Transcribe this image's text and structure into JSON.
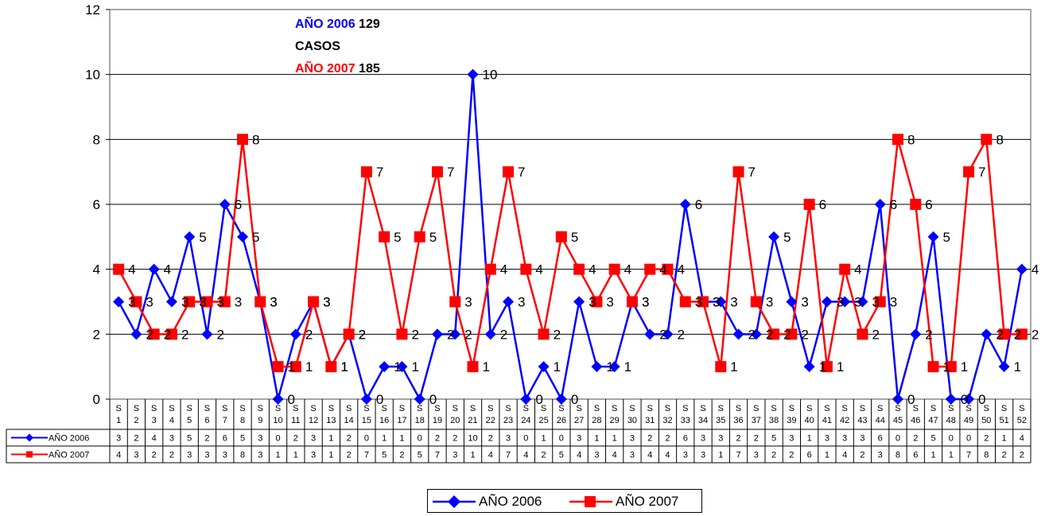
{
  "chart_data": {
    "type": "line",
    "title": "",
    "xlabel": "",
    "ylabel": "",
    "ylim": [
      0,
      12
    ],
    "yticks": [
      0,
      2,
      4,
      6,
      8,
      10,
      12
    ],
    "grid": true,
    "legend_position": "bottom",
    "categories": [
      "S 1",
      "S 2",
      "S 3",
      "S 4",
      "S 5",
      "S 6",
      "S 7",
      "S 8",
      "S 9",
      "S 10",
      "S 11",
      "S 12",
      "S 13",
      "S 14",
      "S 15",
      "S 16",
      "S 17",
      "S 18",
      "S 19",
      "S 20",
      "S 21",
      "S 22",
      "S 23",
      "S 24",
      "S 25",
      "S 26",
      "S 27",
      "S 28",
      "S 29",
      "S 30",
      "S 31",
      "S 32",
      "S 33",
      "S 34",
      "S 35",
      "S 36",
      "S 37",
      "S 38",
      "S 39",
      "S 40",
      "S 41",
      "S 42",
      "S 43",
      "S 44",
      "S 45",
      "S 46",
      "S 47",
      "S 48",
      "S 49",
      "S 50",
      "S 51",
      "S 52"
    ],
    "series": [
      {
        "name": "AÑO 2006",
        "color": "#0000ff",
        "marker": "diamond",
        "values": [
          3,
          2,
          4,
          3,
          5,
          2,
          6,
          5,
          3,
          0,
          2,
          3,
          1,
          2,
          0,
          1,
          1,
          0,
          2,
          2,
          10,
          2,
          3,
          0,
          1,
          0,
          3,
          1,
          1,
          3,
          2,
          2,
          6,
          3,
          3,
          2,
          2,
          5,
          3,
          1,
          3,
          3,
          3,
          6,
          0,
          2,
          5,
          0,
          0,
          2,
          1,
          4
        ]
      },
      {
        "name": "AÑO 2007",
        "color": "#ff0000",
        "marker": "square",
        "values": [
          4,
          3,
          2,
          2,
          3,
          3,
          3,
          8,
          3,
          1,
          1,
          3,
          1,
          2,
          7,
          5,
          2,
          5,
          7,
          3,
          1,
          4,
          7,
          4,
          2,
          5,
          4,
          3,
          4,
          3,
          4,
          4,
          3,
          3,
          1,
          7,
          3,
          2,
          2,
          6,
          1,
          4,
          2,
          3,
          8,
          6,
          1,
          1,
          7,
          8,
          2,
          2
        ]
      }
    ],
    "annotations": {
      "line1_year": "AÑO 2006",
      "line1_value": "129",
      "line2": "CASOS",
      "line3_year": "AÑO 2007",
      "line3_value": "185"
    }
  }
}
